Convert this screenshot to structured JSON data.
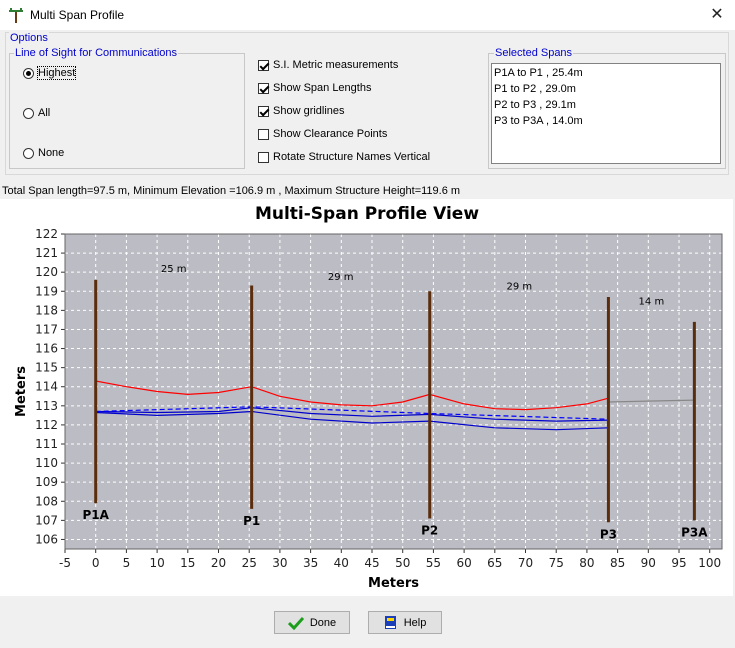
{
  "window": {
    "title": "Multi Span Profile",
    "close_glyph": "✕"
  },
  "options": {
    "legend": "Options",
    "los": {
      "legend": "Line of Sight for Communications",
      "radios": [
        {
          "label": "Highest",
          "selected": true
        },
        {
          "label": "All",
          "selected": false
        },
        {
          "label": "None",
          "selected": false
        }
      ]
    },
    "checkboxes": [
      {
        "label": "S.I. Metric measurements",
        "checked": true
      },
      {
        "label": "Show Span Lengths",
        "checked": true
      },
      {
        "label": "Show gridlines",
        "checked": true
      },
      {
        "label": "Show Clearance Points",
        "checked": false
      },
      {
        "label": "Rotate Structure Names Vertical",
        "checked": false
      }
    ],
    "spans": {
      "legend": "Selected Spans",
      "items": [
        "P1A to P1 , 25.4m",
        "P1 to P2 , 29.0m",
        "P2 to P3 , 29.1m",
        "P3 to P3A , 14.0m"
      ]
    }
  },
  "summary": "Total Span length=97.5 m, Minimum Elevation =106.9 m , Maximum Structure Height=119.6 m",
  "chart_data": {
    "type": "line",
    "title": "Multi-Span Profile View",
    "xlabel": "Meters",
    "ylabel": "Meters",
    "xlim": [
      -5,
      102
    ],
    "ylim": [
      105.5,
      122
    ],
    "xticks": [
      -5,
      0,
      5,
      10,
      15,
      20,
      25,
      30,
      35,
      40,
      45,
      50,
      55,
      60,
      65,
      70,
      75,
      80,
      85,
      90,
      95,
      100
    ],
    "yticks": [
      106,
      107,
      108,
      109,
      110,
      111,
      112,
      113,
      114,
      115,
      116,
      117,
      118,
      119,
      120,
      121,
      122
    ],
    "grid": true,
    "colors": {
      "plot_bg": "#bcbcc4",
      "structure": "#5a2d0c",
      "top_wire": "#ff0000",
      "lower_wire": "#0000cc",
      "los": "#0000ff",
      "extra_span": "#888888"
    },
    "structures": [
      {
        "name": "P1A",
        "x": 0,
        "bottom": 107.9,
        "top": 119.6
      },
      {
        "name": "P1",
        "x": 25.4,
        "bottom": 107.6,
        "top": 119.3
      },
      {
        "name": "P2",
        "x": 54.4,
        "bottom": 107.1,
        "top": 119.0
      },
      {
        "name": "P3",
        "x": 83.5,
        "bottom": 106.9,
        "top": 118.7
      },
      {
        "name": "P3A",
        "x": 97.5,
        "bottom": 107.0,
        "top": 117.4
      }
    ],
    "span_labels": [
      {
        "text": "25 m",
        "x": 12.7,
        "y": 120.0
      },
      {
        "text": "29 m",
        "x": 39.9,
        "y": 119.6
      },
      {
        "text": "29 m",
        "x": 69.0,
        "y": 119.1
      },
      {
        "text": "14 m",
        "x": 90.5,
        "y": 118.3
      }
    ],
    "series": [
      {
        "style": "top_wire",
        "points": [
          [
            0,
            114.3
          ],
          [
            5,
            114.0
          ],
          [
            10,
            113.75
          ],
          [
            15,
            113.6
          ],
          [
            20,
            113.7
          ],
          [
            25.4,
            114.0
          ],
          [
            30,
            113.5
          ],
          [
            35,
            113.2
          ],
          [
            40,
            113.05
          ],
          [
            45,
            113.0
          ],
          [
            50,
            113.2
          ],
          [
            54.4,
            113.6
          ],
          [
            60,
            113.1
          ],
          [
            65,
            112.85
          ],
          [
            70,
            112.8
          ],
          [
            75,
            112.9
          ],
          [
            80,
            113.1
          ],
          [
            83.5,
            113.4
          ]
        ]
      },
      {
        "style": "lower_wire",
        "points": [
          [
            0,
            112.7
          ],
          [
            10,
            112.65
          ],
          [
            20,
            112.7
          ],
          [
            25.4,
            112.9
          ],
          [
            35,
            112.6
          ],
          [
            45,
            112.45
          ],
          [
            54.4,
            112.55
          ],
          [
            65,
            112.3
          ],
          [
            75,
            112.2
          ],
          [
            83.5,
            112.25
          ]
        ]
      },
      {
        "style": "lower_wire",
        "points": [
          [
            0,
            112.65
          ],
          [
            10,
            112.5
          ],
          [
            20,
            112.6
          ],
          [
            25.4,
            112.7
          ],
          [
            35,
            112.3
          ],
          [
            45,
            112.1
          ],
          [
            54.4,
            112.2
          ],
          [
            65,
            111.85
          ],
          [
            75,
            111.75
          ],
          [
            83.5,
            111.85
          ]
        ]
      },
      {
        "style": "los",
        "dashed": true,
        "points": [
          [
            0,
            112.7
          ],
          [
            25.4,
            112.95
          ],
          [
            54.4,
            112.6
          ],
          [
            83.5,
            112.3
          ]
        ]
      },
      {
        "style": "extra_span",
        "points": [
          [
            83.5,
            113.2
          ],
          [
            97.5,
            113.3
          ]
        ]
      }
    ]
  },
  "buttons": {
    "done": "Done",
    "help": "Help"
  }
}
